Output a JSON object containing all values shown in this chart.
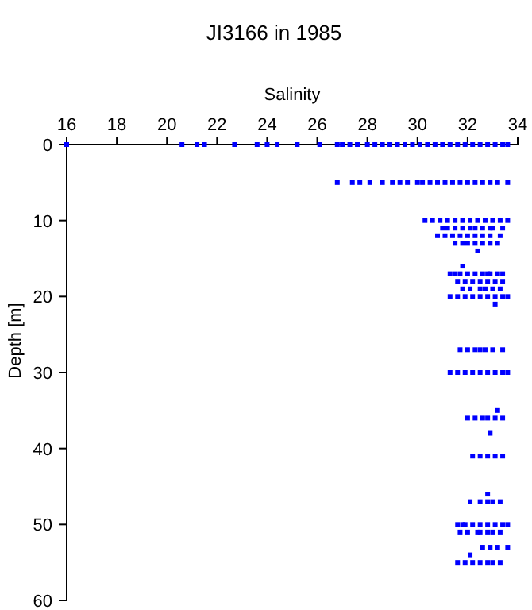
{
  "chart_data": {
    "type": "scatter",
    "title": "JI3166 in 1985",
    "xlabel": "Salinity",
    "ylabel": "Depth [m]",
    "xlim": [
      16,
      34
    ],
    "xticks": [
      16,
      18,
      20,
      22,
      24,
      26,
      28,
      30,
      32,
      34
    ],
    "ylim": [
      60,
      0
    ],
    "yticks": [
      0,
      10,
      20,
      30,
      40,
      50,
      60
    ],
    "marker": "square",
    "series": [
      {
        "color": "#0000ff",
        "x": [
          16,
          20.6,
          21.2,
          21.5,
          22.7,
          23.6,
          24.0,
          24.4,
          25.2,
          26.1,
          26.8,
          27.0,
          27.3,
          27.6,
          28.0,
          28.3,
          28.6,
          28.9,
          29.2,
          29.5,
          29.8,
          30.1,
          30.4,
          30.7,
          31.0,
          31.3,
          31.6,
          31.9,
          32.2,
          32.5,
          32.8,
          33.1,
          33.4,
          33.6,
          26.8,
          27.4,
          27.7,
          28.1,
          28.6,
          29.0,
          29.3,
          29.6,
          30.0,
          30.2,
          30.5,
          30.8,
          31.1,
          31.4,
          31.7,
          32.0,
          32.3,
          32.6,
          32.9,
          33.2,
          33.6,
          30.3,
          30.6,
          30.9,
          31.2,
          31.5,
          31.8,
          32.1,
          32.4,
          32.7,
          33.0,
          33.3,
          33.6,
          31.0,
          31.2,
          31.5,
          31.8,
          32.1,
          32.3,
          32.6,
          32.9,
          33.0,
          33.4,
          30.8,
          31.1,
          31.4,
          31.7,
          32.0,
          32.3,
          32.6,
          32.9,
          33.3,
          31.5,
          31.8,
          32.0,
          32.3,
          32.6,
          32.9,
          33.2,
          32.4,
          31.8,
          31.3,
          31.5,
          31.7,
          32.0,
          32.3,
          32.6,
          32.8,
          32.9,
          33.2,
          33.4,
          31.6,
          31.9,
          32.2,
          32.5,
          32.8,
          33.1,
          33.4,
          31.8,
          32.1,
          32.5,
          32.7,
          33.0,
          33.3,
          31.3,
          31.6,
          31.9,
          32.2,
          32.5,
          32.8,
          33.1,
          33.4,
          33.6,
          33.1,
          31.7,
          32.0,
          32.3,
          32.5,
          32.7,
          33.0,
          33.4,
          31.3,
          31.6,
          31.9,
          32.2,
          32.5,
          32.8,
          33.1,
          33.4,
          33.6,
          33.2,
          32.0,
          32.3,
          32.6,
          32.8,
          33.1,
          33.4,
          32.9,
          32.2,
          32.5,
          32.8,
          33.1,
          33.4,
          32.8,
          32.1,
          32.5,
          32.8,
          33.0,
          33.3,
          31.6,
          31.8,
          31.9,
          32.2,
          32.5,
          32.8,
          33.1,
          33.4,
          33.6,
          31.7,
          32.0,
          32.4,
          32.5,
          32.8,
          33.0,
          33.3,
          32.6,
          32.9,
          33.2,
          33.6,
          32.1,
          31.6,
          31.9,
          32.2,
          32.5,
          32.8,
          33.0,
          33.3
        ],
        "values": [
          0,
          0,
          0,
          0,
          0,
          0,
          0,
          0,
          0,
          0,
          0,
          0,
          0,
          0,
          0,
          0,
          0,
          0,
          0,
          0,
          0,
          0,
          0,
          0,
          0,
          0,
          0,
          0,
          0,
          0,
          0,
          0,
          0,
          0,
          5,
          5,
          5,
          5,
          5,
          5,
          5,
          5,
          5,
          5,
          5,
          5,
          5,
          5,
          5,
          5,
          5,
          5,
          5,
          5,
          5,
          10,
          10,
          10,
          10,
          10,
          10,
          10,
          10,
          10,
          10,
          10,
          10,
          11,
          11,
          11,
          11,
          11,
          11,
          11,
          11,
          11,
          11,
          12,
          12,
          12,
          12,
          12,
          12,
          12,
          12,
          12,
          13,
          13,
          13,
          13,
          13,
          13,
          13,
          14,
          16,
          17,
          17,
          17,
          17,
          17,
          17,
          17,
          17,
          17,
          17,
          18,
          18,
          18,
          18,
          18,
          18,
          18,
          19,
          19,
          19,
          19,
          19,
          19,
          20,
          20,
          20,
          20,
          20,
          20,
          20,
          20,
          20,
          21,
          27,
          27,
          27,
          27,
          27,
          27,
          27,
          30,
          30,
          30,
          30,
          30,
          30,
          30,
          30,
          30,
          35,
          36,
          36,
          36,
          36,
          36,
          36,
          38,
          41,
          41,
          41,
          41,
          41,
          46,
          47,
          47,
          47,
          47,
          47,
          50,
          50,
          50,
          50,
          50,
          50,
          50,
          50,
          50,
          51,
          51,
          51,
          51,
          51,
          51,
          51,
          53,
          53,
          53,
          53,
          54,
          55,
          55,
          55,
          55,
          55,
          55,
          55
        ]
      }
    ]
  }
}
